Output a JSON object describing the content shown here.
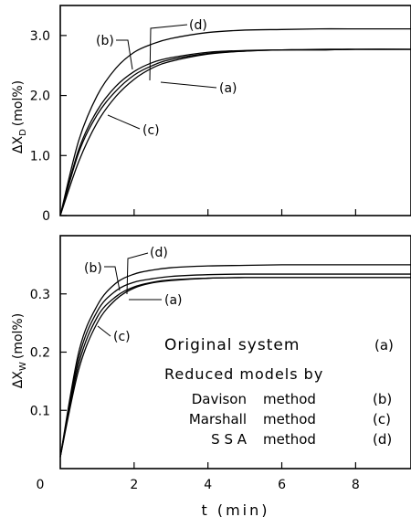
{
  "figure": {
    "xlabel": "t (min)",
    "x_ticks": [
      "0",
      "2",
      "4",
      "6",
      "8"
    ]
  },
  "chart_data": [
    {
      "type": "line",
      "panel": "top",
      "ylabel_main": "ΔX",
      "ylabel_sub": "D",
      "ylabel_unit": "(mol%)",
      "xlim": [
        0,
        9.5
      ],
      "ylim": [
        0,
        3.5
      ],
      "y_ticks": [
        {
          "value": 0,
          "label": "0"
        },
        {
          "value": 1,
          "label": "1.0"
        },
        {
          "value": 2,
          "label": "2.0"
        },
        {
          "value": 3,
          "label": "3.0"
        }
      ],
      "series": [
        {
          "name": "(a)",
          "x": [
            0,
            0.5,
            1,
            1.5,
            2,
            2.5,
            3,
            4,
            5,
            6,
            7,
            8,
            9.5
          ],
          "y": [
            0,
            1.05,
            1.68,
            2.07,
            2.34,
            2.5,
            2.6,
            2.7,
            2.74,
            2.76,
            2.76,
            2.77,
            2.77
          ]
        },
        {
          "name": "(b)",
          "x": [
            0,
            0.5,
            1,
            1.5,
            2,
            2.5,
            3,
            4,
            5,
            6,
            7,
            8,
            9.5
          ],
          "y": [
            0,
            1.25,
            2.0,
            2.45,
            2.72,
            2.86,
            2.95,
            3.05,
            3.09,
            3.1,
            3.11,
            3.11,
            3.11
          ]
        },
        {
          "name": "(c)",
          "x": [
            0,
            0.5,
            1,
            1.5,
            2,
            2.5,
            3,
            4,
            5,
            6,
            7,
            8,
            9.5
          ],
          "y": [
            0,
            0.9,
            1.55,
            1.98,
            2.27,
            2.46,
            2.57,
            2.69,
            2.74,
            2.76,
            2.76,
            2.77,
            2.77
          ]
        },
        {
          "name": "(d)",
          "x": [
            0,
            0.5,
            1,
            1.5,
            2,
            2.5,
            3,
            4,
            5,
            6,
            7,
            8,
            9.5
          ],
          "y": [
            0,
            1.1,
            1.75,
            2.15,
            2.4,
            2.55,
            2.63,
            2.72,
            2.75,
            2.76,
            2.77,
            2.77,
            2.77
          ]
        }
      ],
      "annotations": [
        {
          "text": "(b)",
          "series": "(b)"
        },
        {
          "text": "(d)",
          "series": "(d)"
        },
        {
          "text": "(a)",
          "series": "(a)"
        },
        {
          "text": "(c)",
          "series": "(c)"
        }
      ]
    },
    {
      "type": "line",
      "panel": "bottom",
      "ylabel_main": "ΔX",
      "ylabel_sub": "W",
      "ylabel_unit": "(mol%)",
      "xlim": [
        0,
        9.5
      ],
      "ylim": [
        0,
        0.4
      ],
      "y_ticks": [
        {
          "value": 0.1,
          "label": "0.1"
        },
        {
          "value": 0.2,
          "label": "0.2"
        },
        {
          "value": 0.3,
          "label": "0.3"
        }
      ],
      "series": [
        {
          "name": "(a)",
          "x": [
            0,
            0.5,
            1,
            1.5,
            2,
            2.5,
            3,
            4,
            5,
            6,
            7,
            8,
            9.5
          ],
          "y": [
            0.02,
            0.18,
            0.26,
            0.295,
            0.312,
            0.32,
            0.324,
            0.327,
            0.328,
            0.328,
            0.328,
            0.328,
            0.328
          ]
        },
        {
          "name": "(b)",
          "x": [
            0,
            0.5,
            1,
            1.5,
            2,
            2.5,
            3,
            4,
            5,
            6,
            7,
            8,
            9.5
          ],
          "y": [
            0.02,
            0.2,
            0.28,
            0.318,
            0.334,
            0.341,
            0.345,
            0.348,
            0.349,
            0.35,
            0.35,
            0.35,
            0.35
          ]
        },
        {
          "name": "(c)",
          "x": [
            0,
            0.5,
            1,
            1.5,
            2,
            2.5,
            3,
            4,
            5,
            6,
            7,
            8,
            9.5
          ],
          "y": [
            0.02,
            0.17,
            0.25,
            0.29,
            0.31,
            0.319,
            0.323,
            0.327,
            0.328,
            0.328,
            0.328,
            0.328,
            0.328
          ]
        },
        {
          "name": "(d)",
          "x": [
            0,
            0.5,
            1,
            1.5,
            2,
            2.5,
            3,
            4,
            5,
            6,
            7,
            8,
            9.5
          ],
          "y": [
            0.02,
            0.19,
            0.27,
            0.305,
            0.32,
            0.326,
            0.33,
            0.333,
            0.334,
            0.334,
            0.334,
            0.334,
            0.334
          ]
        }
      ],
      "annotations": [
        {
          "text": "(b)",
          "series": "(b)"
        },
        {
          "text": "(d)",
          "series": "(d)"
        },
        {
          "text": "(a)",
          "series": "(a)"
        },
        {
          "text": "(c)",
          "series": "(c)"
        }
      ]
    }
  ],
  "legend": {
    "title": "Original system",
    "title_key": "(a)",
    "subtitle": "Reduced models by",
    "rows": [
      {
        "method": "Davison",
        "word": "method",
        "key": "(b)"
      },
      {
        "method": "Marshall",
        "word": "method",
        "key": "(c)"
      },
      {
        "method": "S S A",
        "word": "method",
        "key": "(d)"
      }
    ]
  }
}
